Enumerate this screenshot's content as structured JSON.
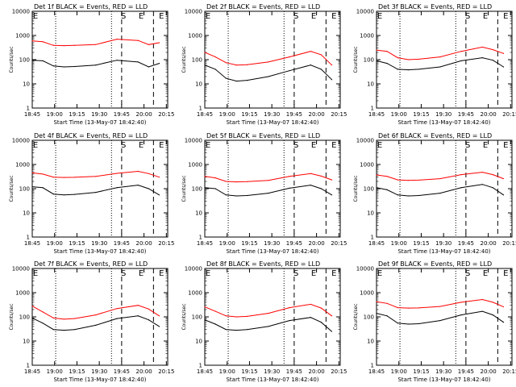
{
  "chart_data": [
    {
      "type": "line",
      "title": "Det 1f BLACK = Events, RED = LLD",
      "xlabel": "Start Time (13-May-07 18:42:40)",
      "ylabel": "Counts/sec",
      "yscale": "log",
      "ylim": [
        1,
        10000
      ],
      "xticks": [
        "18:45",
        "19:00",
        "19:15",
        "19:30",
        "19:45",
        "20:00",
        "20:15"
      ],
      "yticks": [
        "1",
        "10",
        "100",
        "1000",
        "10000"
      ],
      "markers": [
        "E",
        "S",
        "E",
        "E"
      ],
      "series": [
        {
          "name": "BLACK",
          "color": "#000000",
          "x": [
            0,
            5,
            10,
            15,
            20,
            30,
            40,
            50,
            55,
            60
          ],
          "y": [
            95,
            90,
            55,
            50,
            52,
            60,
            95,
            80,
            50,
            70
          ]
        },
        {
          "name": "RED",
          "color": "#ff0000",
          "x": [
            0,
            5,
            10,
            15,
            20,
            30,
            40,
            50,
            55,
            60
          ],
          "y": [
            600,
            550,
            390,
            380,
            390,
            420,
            700,
            620,
            420,
            500
          ]
        }
      ]
    },
    {
      "type": "line",
      "title": "Det 2f BLACK = Events, RED = LLD",
      "xlabel": "Start Time (13-May-07 18:42:40)",
      "ylabel": "Counts/sec",
      "yscale": "log",
      "ylim": [
        1,
        10000
      ],
      "xticks": [
        "18:45",
        "19:00",
        "19:15",
        "19:30",
        "19:45",
        "20:00",
        "20:15"
      ],
      "yticks": [
        "1",
        "10",
        "100",
        "1000",
        "10000"
      ],
      "markers": [
        "E",
        "S",
        "E",
        "E"
      ],
      "series": [
        {
          "name": "BLACK",
          "color": "#000000",
          "x": [
            0,
            5,
            10,
            15,
            20,
            30,
            40,
            50,
            55,
            60
          ],
          "y": [
            60,
            40,
            17,
            13,
            14,
            20,
            35,
            60,
            40,
            15
          ]
        },
        {
          "name": "RED",
          "color": "#ff0000",
          "x": [
            0,
            5,
            10,
            15,
            20,
            30,
            40,
            50,
            55,
            60
          ],
          "y": [
            200,
            130,
            75,
            60,
            62,
            80,
            130,
            220,
            160,
            60
          ]
        }
      ]
    },
    {
      "type": "line",
      "title": "Det 3f BLACK = Events, RED = LLD",
      "xlabel": "Start Time (13-May-07 18:42:40)",
      "ylabel": "Counts/sec",
      "yscale": "log",
      "ylim": [
        1,
        10000
      ],
      "xticks": [
        "18:45",
        "19:00",
        "19:15",
        "19:30",
        "19:45",
        "20:00",
        "20:15"
      ],
      "yticks": [
        "1",
        "10",
        "100",
        "1000",
        "10000"
      ],
      "markers": [
        "E",
        "S",
        "E",
        "E"
      ],
      "series": [
        {
          "name": "BLACK",
          "color": "#000000",
          "x": [
            0,
            5,
            10,
            15,
            20,
            30,
            40,
            50,
            55,
            60
          ],
          "y": [
            90,
            70,
            40,
            38,
            40,
            50,
            90,
            120,
            95,
            50
          ]
        },
        {
          "name": "RED",
          "color": "#ff0000",
          "x": [
            0,
            5,
            10,
            15,
            20,
            30,
            40,
            50,
            55,
            60
          ],
          "y": [
            250,
            220,
            120,
            100,
            105,
            130,
            220,
            330,
            260,
            180
          ]
        }
      ]
    },
    {
      "type": "line",
      "title": "Det 4f BLACK = Events, RED = LLD",
      "xlabel": "Start Time (13-May-07 18:42:40)",
      "ylabel": "Counts/sec",
      "yscale": "log",
      "ylim": [
        1,
        10000
      ],
      "xticks": [
        "18:45",
        "19:00",
        "19:15",
        "19:30",
        "19:45",
        "20:00",
        "20:15"
      ],
      "yticks": [
        "1",
        "10",
        "100",
        "1000",
        "10000"
      ],
      "markers": [
        "E",
        "S",
        "E",
        "E"
      ],
      "series": [
        {
          "name": "BLACK",
          "color": "#000000",
          "x": [
            0,
            5,
            10,
            15,
            20,
            30,
            40,
            50,
            55,
            60
          ],
          "y": [
            120,
            110,
            60,
            55,
            58,
            70,
            110,
            140,
            100,
            55
          ]
        },
        {
          "name": "RED",
          "color": "#ff0000",
          "x": [
            0,
            5,
            10,
            15,
            20,
            30,
            40,
            50,
            55,
            60
          ],
          "y": [
            450,
            400,
            300,
            290,
            295,
            320,
            430,
            520,
            420,
            300
          ]
        }
      ]
    },
    {
      "type": "line",
      "title": "Det 5f BLACK = Events, RED = LLD",
      "xlabel": "Start Time (13-May-07 18:42:40)",
      "ylabel": "Counts/sec",
      "yscale": "log",
      "ylim": [
        1,
        10000
      ],
      "xticks": [
        "18:45",
        "19:00",
        "19:15",
        "19:30",
        "19:45",
        "20:00",
        "20:15"
      ],
      "yticks": [
        "1",
        "10",
        "100",
        "1000",
        "10000"
      ],
      "markers": [
        "E",
        "S",
        "E",
        "E"
      ],
      "series": [
        {
          "name": "BLACK",
          "color": "#000000",
          "x": [
            0,
            5,
            10,
            15,
            20,
            30,
            40,
            50,
            55,
            60
          ],
          "y": [
            110,
            100,
            55,
            50,
            52,
            65,
            105,
            140,
            100,
            55
          ]
        },
        {
          "name": "RED",
          "color": "#ff0000",
          "x": [
            0,
            5,
            10,
            15,
            20,
            30,
            40,
            50,
            55,
            60
          ],
          "y": [
            320,
            280,
            200,
            190,
            195,
            220,
            320,
            420,
            330,
            230
          ]
        }
      ]
    },
    {
      "type": "line",
      "title": "Det 6f BLACK = Events, RED = LLD",
      "xlabel": "Start Time (13-May-07 18:42:40)",
      "ylabel": "Counts/sec",
      "yscale": "log",
      "ylim": [
        1,
        10000
      ],
      "xticks": [
        "18:45",
        "19:00",
        "19:15",
        "19:30",
        "19:45",
        "20:00",
        "20:15"
      ],
      "yticks": [
        "1",
        "10",
        "100",
        "1000",
        "10000"
      ],
      "markers": [
        "E",
        "S",
        "E",
        "E"
      ],
      "series": [
        {
          "name": "BLACK",
          "color": "#000000",
          "x": [
            0,
            5,
            10,
            15,
            20,
            30,
            40,
            50,
            55,
            60
          ],
          "y": [
            110,
            90,
            55,
            50,
            52,
            65,
            110,
            150,
            110,
            55
          ]
        },
        {
          "name": "RED",
          "color": "#ff0000",
          "x": [
            0,
            5,
            10,
            15,
            20,
            30,
            40,
            50,
            55,
            60
          ],
          "y": [
            370,
            320,
            230,
            220,
            225,
            260,
            380,
            480,
            380,
            260
          ]
        }
      ]
    },
    {
      "type": "line",
      "title": "Det 7f BLACK = Events, RED = LLD",
      "xlabel": "Start Time (13-May-07 18:42:40)",
      "ylabel": "Counts/sec",
      "yscale": "log",
      "ylim": [
        1,
        10000
      ],
      "xticks": [
        "18:45",
        "19:00",
        "19:15",
        "19:30",
        "19:45",
        "20:00",
        "20:15"
      ],
      "yticks": [
        "1",
        "10",
        "100",
        "1000",
        "10000"
      ],
      "markers": [
        "E",
        "S",
        "E",
        "E"
      ],
      "series": [
        {
          "name": "BLACK",
          "color": "#000000",
          "x": [
            0,
            5,
            10,
            15,
            20,
            30,
            40,
            50,
            55,
            60
          ],
          "y": [
            90,
            55,
            30,
            28,
            30,
            45,
            85,
            110,
            75,
            40
          ]
        },
        {
          "name": "RED",
          "color": "#ff0000",
          "x": [
            0,
            5,
            10,
            15,
            20,
            30,
            40,
            50,
            55,
            60
          ],
          "y": [
            280,
            160,
            90,
            80,
            85,
            120,
            220,
            300,
            210,
            110
          ]
        }
      ]
    },
    {
      "type": "line",
      "title": "Det 8f BLACK = Events, RED = LLD",
      "xlabel": "Start Time (13-May-07 18:42:40)",
      "ylabel": "Counts/sec",
      "yscale": "log",
      "ylim": [
        1,
        10000
      ],
      "xticks": [
        "18:45",
        "19:00",
        "19:15",
        "19:30",
        "19:45",
        "20:00",
        "20:15"
      ],
      "yticks": [
        "1",
        "10",
        "100",
        "1000",
        "10000"
      ],
      "markers": [
        "E",
        "S",
        "E",
        "E"
      ],
      "series": [
        {
          "name": "BLACK",
          "color": "#000000",
          "x": [
            0,
            5,
            10,
            15,
            20,
            30,
            40,
            50,
            55,
            60
          ],
          "y": [
            75,
            50,
            30,
            28,
            30,
            40,
            70,
            95,
            60,
            25
          ]
        },
        {
          "name": "RED",
          "color": "#ff0000",
          "x": [
            0,
            5,
            10,
            15,
            20,
            30,
            40,
            50,
            55,
            60
          ],
          "y": [
            260,
            170,
            110,
            100,
            105,
            140,
            240,
            330,
            230,
            110
          ]
        }
      ]
    },
    {
      "type": "line",
      "title": "Det 9f BLACK = Events, RED = LLD",
      "xlabel": "Start Time (13-May-07 18:42:40)",
      "ylabel": "Counts/sec",
      "yscale": "log",
      "ylim": [
        1,
        10000
      ],
      "xticks": [
        "18:45",
        "19:00",
        "19:15",
        "19:30",
        "19:45",
        "20:00",
        "20:15"
      ],
      "yticks": [
        "1",
        "10",
        "100",
        "1000",
        "10000"
      ],
      "markers": [
        "E",
        "S",
        "E",
        "E"
      ],
      "series": [
        {
          "name": "BLACK",
          "color": "#000000",
          "x": [
            0,
            5,
            10,
            15,
            20,
            30,
            40,
            50,
            55,
            60
          ],
          "y": [
            140,
            110,
            55,
            50,
            52,
            70,
            120,
            170,
            120,
            60
          ]
        },
        {
          "name": "RED",
          "color": "#ff0000",
          "x": [
            0,
            5,
            10,
            15,
            20,
            30,
            40,
            50,
            55,
            60
          ],
          "y": [
            420,
            360,
            240,
            230,
            235,
            270,
            400,
            520,
            400,
            260
          ]
        }
      ]
    }
  ]
}
